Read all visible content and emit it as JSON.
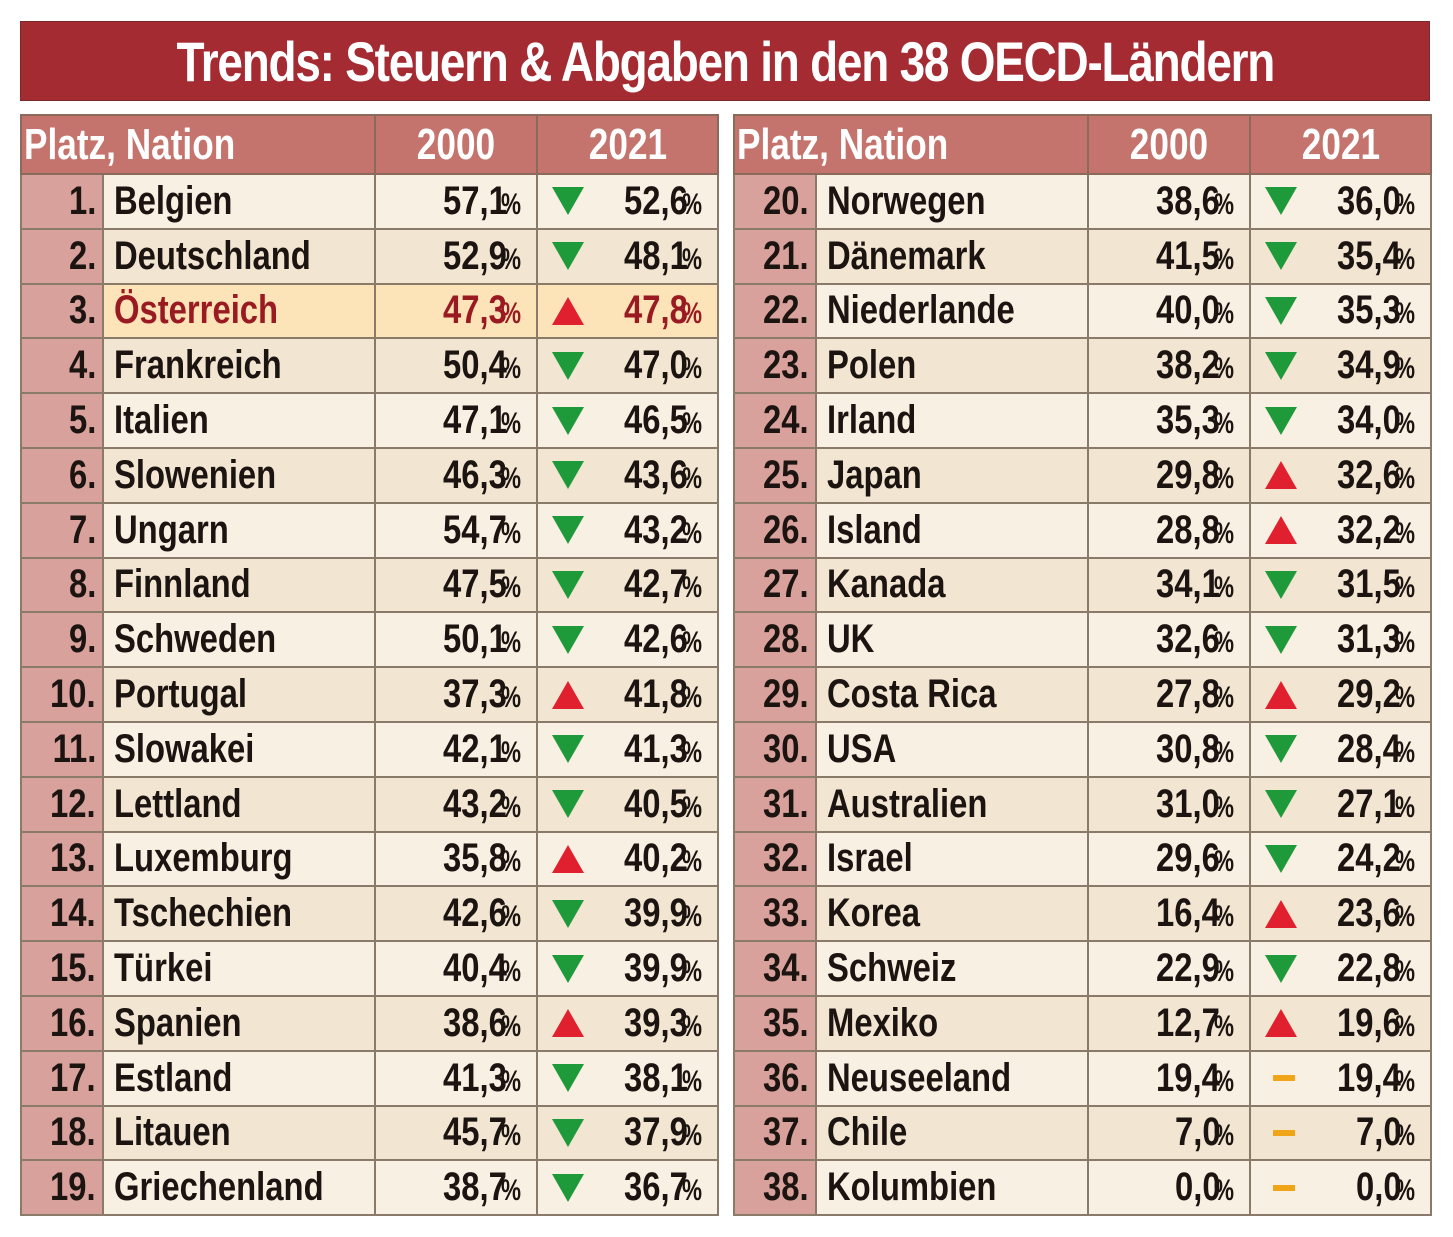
{
  "title": "Trends: Steuern & Abgaben in den 38 OECD-Ländern",
  "columns": {
    "nation": "Platz, Nation",
    "year1": "2000",
    "year2": "2021"
  },
  "unit": "%",
  "colors": {
    "title_bg": "#a52b33",
    "header_bg": "#c4736d",
    "rank_bg": "#d9a19b",
    "down": "#1f9a3a",
    "up": "#e0202e",
    "same": "#f0a418",
    "highlight_bg": "#fde3b8",
    "highlight_text": "#9a1a22"
  },
  "tables": [
    {
      "rows": [
        {
          "rank": "1.",
          "nation": "Belgien",
          "v2000": "57,1",
          "v2021": "52,6",
          "trend": "down"
        },
        {
          "rank": "2.",
          "nation": "Deutschland",
          "v2000": "52,9",
          "v2021": "48,1",
          "trend": "down"
        },
        {
          "rank": "3.",
          "nation": "Österreich",
          "v2000": "47,3",
          "v2021": "47,8",
          "trend": "up",
          "highlight": true
        },
        {
          "rank": "4.",
          "nation": "Frankreich",
          "v2000": "50,4",
          "v2021": "47,0",
          "trend": "down"
        },
        {
          "rank": "5.",
          "nation": "Italien",
          "v2000": "47,1",
          "v2021": "46,5",
          "trend": "down"
        },
        {
          "rank": "6.",
          "nation": "Slowenien",
          "v2000": "46,3",
          "v2021": "43,6",
          "trend": "down"
        },
        {
          "rank": "7.",
          "nation": "Ungarn",
          "v2000": "54,7",
          "v2021": "43,2",
          "trend": "down"
        },
        {
          "rank": "8.",
          "nation": "Finnland",
          "v2000": "47,5",
          "v2021": "42,7",
          "trend": "down"
        },
        {
          "rank": "9.",
          "nation": "Schweden",
          "v2000": "50,1",
          "v2021": "42,6",
          "trend": "down"
        },
        {
          "rank": "10.",
          "nation": "Portugal",
          "v2000": "37,3",
          "v2021": "41,8",
          "trend": "up"
        },
        {
          "rank": "11.",
          "nation": "Slowakei",
          "v2000": "42,1",
          "v2021": "41,3",
          "trend": "down"
        },
        {
          "rank": "12.",
          "nation": "Lettland",
          "v2000": "43,2",
          "v2021": "40,5",
          "trend": "down"
        },
        {
          "rank": "13.",
          "nation": "Luxemburg",
          "v2000": "35,8",
          "v2021": "40,2",
          "trend": "up"
        },
        {
          "rank": "14.",
          "nation": "Tschechien",
          "v2000": "42,6",
          "v2021": "39,9",
          "trend": "down"
        },
        {
          "rank": "15.",
          "nation": "Türkei",
          "v2000": "40,4",
          "v2021": "39,9",
          "trend": "down"
        },
        {
          "rank": "16.",
          "nation": "Spanien",
          "v2000": "38,6",
          "v2021": "39,3",
          "trend": "up"
        },
        {
          "rank": "17.",
          "nation": "Estland",
          "v2000": "41,3",
          "v2021": "38,1",
          "trend": "down"
        },
        {
          "rank": "18.",
          "nation": "Litauen",
          "v2000": "45,7",
          "v2021": "37,9",
          "trend": "down"
        },
        {
          "rank": "19.",
          "nation": "Griechenland",
          "v2000": "38,7",
          "v2021": "36,7",
          "trend": "down"
        }
      ]
    },
    {
      "rows": [
        {
          "rank": "20.",
          "nation": "Norwegen",
          "v2000": "38,6",
          "v2021": "36,0",
          "trend": "down"
        },
        {
          "rank": "21.",
          "nation": "Dänemark",
          "v2000": "41,5",
          "v2021": "35,4",
          "trend": "down"
        },
        {
          "rank": "22.",
          "nation": "Niederlande",
          "v2000": "40,0",
          "v2021": "35,3",
          "trend": "down"
        },
        {
          "rank": "23.",
          "nation": "Polen",
          "v2000": "38,2",
          "v2021": "34,9",
          "trend": "down"
        },
        {
          "rank": "24.",
          "nation": "Irland",
          "v2000": "35,3",
          "v2021": "34,0",
          "trend": "down"
        },
        {
          "rank": "25.",
          "nation": "Japan",
          "v2000": "29,8",
          "v2021": "32,6",
          "trend": "up"
        },
        {
          "rank": "26.",
          "nation": "Island",
          "v2000": "28,8",
          "v2021": "32,2",
          "trend": "up"
        },
        {
          "rank": "27.",
          "nation": "Kanada",
          "v2000": "34,1",
          "v2021": "31,5",
          "trend": "down"
        },
        {
          "rank": "28.",
          "nation": "UK",
          "v2000": "32,6",
          "v2021": "31,3",
          "trend": "down"
        },
        {
          "rank": "29.",
          "nation": "Costa Rica",
          "v2000": "27,8",
          "v2021": "29,2",
          "trend": "up"
        },
        {
          "rank": "30.",
          "nation": "USA",
          "v2000": "30,8",
          "v2021": "28,4",
          "trend": "down"
        },
        {
          "rank": "31.",
          "nation": "Australien",
          "v2000": "31,0",
          "v2021": "27,1",
          "trend": "down"
        },
        {
          "rank": "32.",
          "nation": "Israel",
          "v2000": "29,6",
          "v2021": "24,2",
          "trend": "down"
        },
        {
          "rank": "33.",
          "nation": "Korea",
          "v2000": "16,4",
          "v2021": "23,6",
          "trend": "up"
        },
        {
          "rank": "34.",
          "nation": "Schweiz",
          "v2000": "22,9",
          "v2021": "22,8",
          "trend": "down"
        },
        {
          "rank": "35.",
          "nation": "Mexiko",
          "v2000": "12,7",
          "v2021": "19,6",
          "trend": "up"
        },
        {
          "rank": "36.",
          "nation": "Neuseeland",
          "v2000": "19,4",
          "v2021": "19,4",
          "trend": "same"
        },
        {
          "rank": "37.",
          "nation": "Chile",
          "v2000": "7,0",
          "v2021": "7,0",
          "trend": "same"
        },
        {
          "rank": "38.",
          "nation": "Kolumbien",
          "v2000": "0,0",
          "v2021": "0,0",
          "trend": "same"
        }
      ]
    }
  ]
}
